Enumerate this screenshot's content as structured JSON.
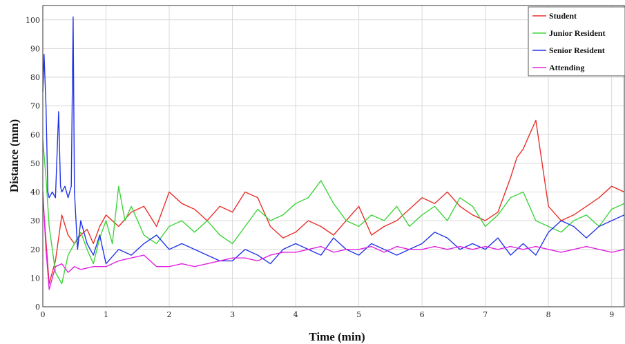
{
  "chart_data": {
    "type": "line",
    "xlabel": "Time (min)",
    "ylabel": "Distance (mm)",
    "xlim": [
      0,
      9.2
    ],
    "ylim": [
      0,
      105
    ],
    "xticks": [
      "0",
      "1",
      "2",
      "3",
      "4",
      "5",
      "6",
      "7",
      "8",
      "9"
    ],
    "yticks": [
      "0",
      "10",
      "20",
      "30",
      "40",
      "50",
      "60",
      "70",
      "80",
      "90",
      "100"
    ],
    "grid": true,
    "legend_position": "top-right",
    "series": [
      {
        "name": "Student",
        "color": "#e8302a",
        "x": [
          0,
          0.1,
          0.2,
          0.3,
          0.4,
          0.5,
          0.6,
          0.7,
          0.8,
          0.9,
          1.0,
          1.2,
          1.4,
          1.6,
          1.8,
          2.0,
          2.2,
          2.4,
          2.6,
          2.8,
          3.0,
          3.2,
          3.4,
          3.6,
          3.8,
          4.0,
          4.2,
          4.4,
          4.6,
          4.8,
          5.0,
          5.2,
          5.4,
          5.6,
          5.8,
          6.0,
          6.2,
          6.4,
          6.6,
          6.8,
          7.0,
          7.2,
          7.4,
          7.5,
          7.6,
          7.7,
          7.8,
          7.9,
          8.0,
          8.2,
          8.4,
          8.6,
          8.8,
          9.0,
          9.2
        ],
        "y": [
          38,
          8,
          16,
          32,
          25,
          22,
          25,
          27,
          22,
          28,
          32,
          28,
          33,
          35,
          28,
          40,
          36,
          34,
          30,
          35,
          33,
          40,
          38,
          28,
          24,
          26,
          30,
          28,
          25,
          30,
          35,
          25,
          28,
          30,
          34,
          38,
          36,
          40,
          35,
          32,
          30,
          33,
          45,
          52,
          55,
          60,
          65,
          50,
          35,
          30,
          32,
          35,
          38,
          42,
          40
        ]
      },
      {
        "name": "Junior Resident",
        "color": "#3ed43a",
        "x": [
          0,
          0.05,
          0.1,
          0.2,
          0.3,
          0.4,
          0.5,
          0.6,
          0.7,
          0.8,
          0.9,
          1.0,
          1.1,
          1.2,
          1.3,
          1.4,
          1.6,
          1.8,
          2.0,
          2.2,
          2.4,
          2.6,
          2.8,
          3.0,
          3.2,
          3.4,
          3.6,
          3.8,
          4.0,
          4.2,
          4.4,
          4.6,
          4.8,
          5.0,
          5.2,
          5.4,
          5.6,
          5.8,
          6.0,
          6.2,
          6.4,
          6.6,
          6.8,
          7.0,
          7.2,
          7.4,
          7.6,
          7.8,
          8.0,
          8.2,
          8.4,
          8.6,
          8.8,
          9.0,
          9.2
        ],
        "y": [
          58,
          45,
          28,
          12,
          8,
          18,
          22,
          26,
          20,
          15,
          24,
          30,
          22,
          42,
          30,
          35,
          25,
          22,
          28,
          30,
          26,
          30,
          25,
          22,
          28,
          34,
          30,
          32,
          36,
          38,
          44,
          36,
          30,
          28,
          32,
          30,
          35,
          28,
          32,
          35,
          30,
          38,
          35,
          28,
          32,
          38,
          40,
          30,
          28,
          26,
          30,
          32,
          28,
          34,
          36
        ]
      },
      {
        "name": "Senior Resident",
        "color": "#2234e8",
        "x": [
          0,
          0.02,
          0.05,
          0.08,
          0.1,
          0.15,
          0.2,
          0.25,
          0.28,
          0.3,
          0.35,
          0.4,
          0.45,
          0.48,
          0.5,
          0.55,
          0.6,
          0.7,
          0.8,
          0.9,
          1.0,
          1.2,
          1.4,
          1.6,
          1.8,
          2.0,
          2.2,
          2.4,
          2.6,
          2.8,
          3.0,
          3.2,
          3.4,
          3.6,
          3.8,
          4.0,
          4.2,
          4.4,
          4.6,
          4.8,
          5.0,
          5.2,
          5.4,
          5.6,
          5.8,
          6.0,
          6.2,
          6.4,
          6.6,
          6.8,
          7.0,
          7.2,
          7.4,
          7.6,
          7.8,
          8.0,
          8.2,
          8.4,
          8.6,
          8.8,
          9.0,
          9.2
        ],
        "y": [
          75,
          88,
          70,
          40,
          38,
          40,
          38,
          68,
          42,
          40,
          42,
          38,
          42,
          101,
          40,
          20,
          30,
          22,
          18,
          25,
          15,
          20,
          18,
          22,
          25,
          20,
          22,
          20,
          18,
          16,
          16,
          20,
          18,
          15,
          20,
          22,
          20,
          18,
          24,
          20,
          18,
          22,
          20,
          18,
          20,
          22,
          26,
          24,
          20,
          22,
          20,
          24,
          18,
          22,
          18,
          26,
          30,
          28,
          24,
          28,
          30,
          32
        ]
      },
      {
        "name": "Attending",
        "color": "#e020e0",
        "x": [
          0,
          0.05,
          0.1,
          0.15,
          0.2,
          0.3,
          0.4,
          0.5,
          0.6,
          0.8,
          1.0,
          1.2,
          1.4,
          1.6,
          1.8,
          2.0,
          2.2,
          2.4,
          2.6,
          2.8,
          3.0,
          3.2,
          3.4,
          3.6,
          3.8,
          4.0,
          4.2,
          4.4,
          4.6,
          4.8,
          5.0,
          5.2,
          5.4,
          5.6,
          5.8,
          6.0,
          6.2,
          6.4,
          6.6,
          6.8,
          7.0,
          7.2,
          7.4,
          7.6,
          7.8,
          8.0,
          8.2,
          8.4,
          8.6,
          8.8,
          9.0,
          9.2
        ],
        "y": [
          40,
          20,
          6,
          10,
          14,
          15,
          12,
          14,
          13,
          14,
          14,
          16,
          17,
          18,
          14,
          14,
          15,
          14,
          15,
          16,
          17,
          17,
          16,
          18,
          19,
          19,
          20,
          21,
          19,
          20,
          20,
          21,
          19,
          21,
          20,
          20,
          21,
          20,
          21,
          20,
          21,
          20,
          21,
          20,
          21,
          20,
          19,
          20,
          21,
          20,
          19,
          20
        ]
      }
    ]
  }
}
